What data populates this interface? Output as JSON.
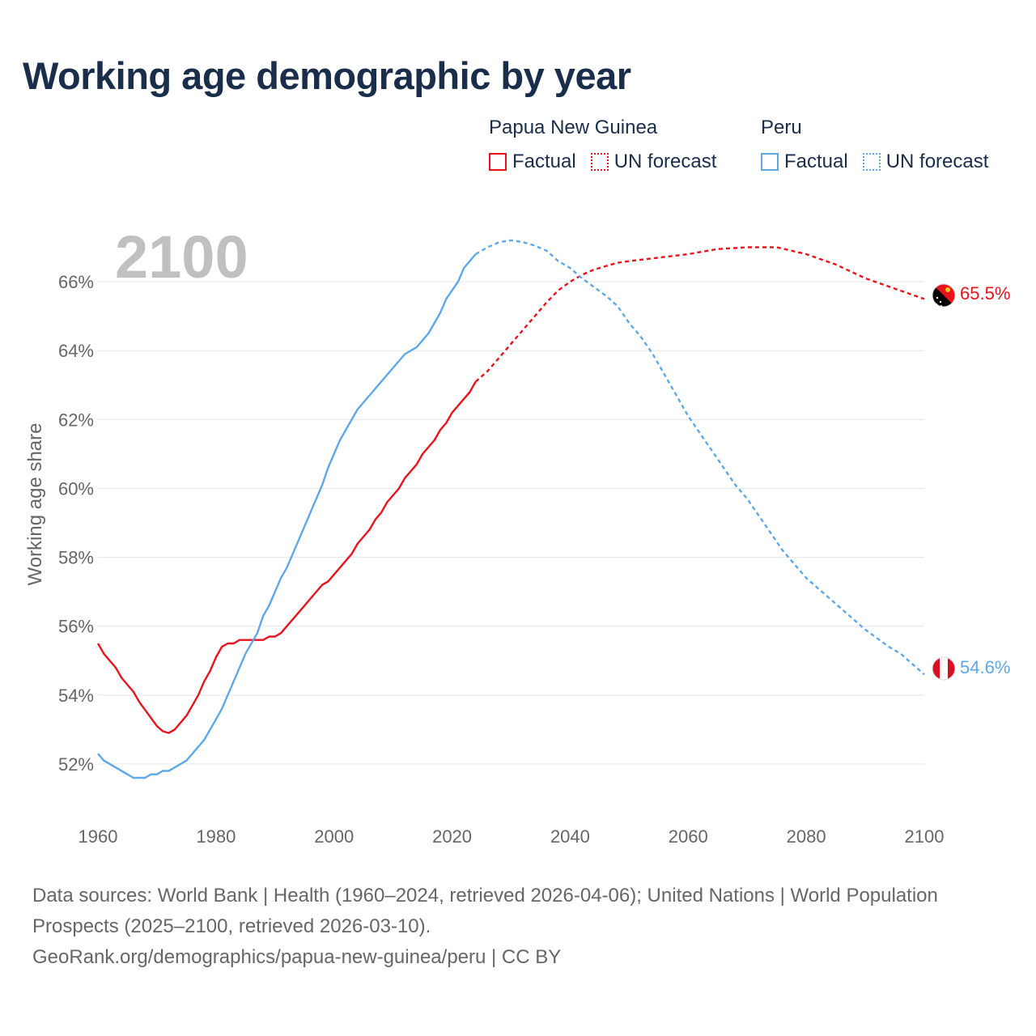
{
  "title": "Working age demographic by year",
  "legend": {
    "groups": [
      {
        "country": "Papua New Guinea",
        "factual_label": "Factual",
        "forecast_label": "UN forecast",
        "color": "#e8141c"
      },
      {
        "country": "Peru",
        "factual_label": "Factual",
        "forecast_label": "UN forecast",
        "color": "#5ea8e8"
      }
    ]
  },
  "colors": {
    "pg": "#e8141c",
    "pe": "#5ea8e8",
    "grid": "#e6e6e6",
    "axis_text": "#666666",
    "year_watermark": "#c0c0c0"
  },
  "footer": {
    "sources": "Data sources: World Bank | Health (1960–2024, retrieved 2026-04-06); United Nations | World Population Prospects (2025–2100, retrieved 2026-03-10).",
    "attribution": "GeoRank.org/demographics/papua-new-guinea/peru | CC BY"
  },
  "chart_data": {
    "type": "line",
    "title": "Working age demographic by year",
    "current_year_label": "2100",
    "xlabel": "",
    "ylabel": "Working age share",
    "xlim": [
      1960,
      2100
    ],
    "ylim": [
      50.8,
      67.6
    ],
    "x_ticks": [
      1960,
      1980,
      2000,
      2020,
      2040,
      2060,
      2080,
      2100
    ],
    "y_ticks": [
      52,
      54,
      56,
      58,
      60,
      62,
      64,
      66
    ],
    "y_tick_labels": [
      "52%",
      "54%",
      "56%",
      "58%",
      "60%",
      "62%",
      "64%",
      "66%"
    ],
    "grid": true,
    "factual_until": 2024,
    "series": [
      {
        "name": "Papua New Guinea",
        "key": "pg",
        "end_label": "65.5%",
        "flag": "papua-new-guinea-flag",
        "points": [
          [
            1960,
            55.5
          ],
          [
            1961,
            55.2
          ],
          [
            1963,
            54.8
          ],
          [
            1964,
            54.5
          ],
          [
            1966,
            54.1
          ],
          [
            1967,
            53.8
          ],
          [
            1970,
            53.1
          ],
          [
            1971,
            52.95
          ],
          [
            1972,
            52.9
          ],
          [
            1973,
            53.0
          ],
          [
            1975,
            53.4
          ],
          [
            1977,
            54.0
          ],
          [
            1978,
            54.4
          ],
          [
            1979,
            54.7
          ],
          [
            1980,
            55.1
          ],
          [
            1981,
            55.4
          ],
          [
            1982,
            55.5
          ],
          [
            1983,
            55.5
          ],
          [
            1984,
            55.6
          ],
          [
            1985,
            55.6
          ],
          [
            1986,
            55.6
          ],
          [
            1987,
            55.6
          ],
          [
            1988,
            55.6
          ],
          [
            1989,
            55.7
          ],
          [
            1990,
            55.7
          ],
          [
            1991,
            55.8
          ],
          [
            1993,
            56.2
          ],
          [
            1995,
            56.6
          ],
          [
            1997,
            57.0
          ],
          [
            1998,
            57.2
          ],
          [
            1999,
            57.3
          ],
          [
            2001,
            57.7
          ],
          [
            2003,
            58.1
          ],
          [
            2004,
            58.4
          ],
          [
            2006,
            58.8
          ],
          [
            2007,
            59.1
          ],
          [
            2008,
            59.3
          ],
          [
            2009,
            59.6
          ],
          [
            2010,
            59.8
          ],
          [
            2011,
            60.0
          ],
          [
            2012,
            60.3
          ],
          [
            2014,
            60.7
          ],
          [
            2015,
            61.0
          ],
          [
            2017,
            61.4
          ],
          [
            2018,
            61.7
          ],
          [
            2019,
            61.9
          ],
          [
            2020,
            62.2
          ],
          [
            2022,
            62.6
          ],
          [
            2023,
            62.8
          ],
          [
            2024,
            63.1
          ],
          [
            2026,
            63.4
          ],
          [
            2028,
            63.8
          ],
          [
            2030,
            64.2
          ],
          [
            2032,
            64.6
          ],
          [
            2034,
            65.0
          ],
          [
            2036,
            65.4
          ],
          [
            2038,
            65.75
          ],
          [
            2040,
            66.0
          ],
          [
            2042,
            66.2
          ],
          [
            2044,
            66.35
          ],
          [
            2046,
            66.45
          ],
          [
            2048,
            66.55
          ],
          [
            2050,
            66.6
          ],
          [
            2055,
            66.7
          ],
          [
            2060,
            66.8
          ],
          [
            2065,
            66.95
          ],
          [
            2070,
            67.0
          ],
          [
            2075,
            67.0
          ],
          [
            2080,
            66.8
          ],
          [
            2085,
            66.5
          ],
          [
            2090,
            66.1
          ],
          [
            2095,
            65.8
          ],
          [
            2100,
            65.5
          ]
        ]
      },
      {
        "name": "Peru",
        "key": "pe",
        "end_label": "54.6%",
        "flag": "peru-flag",
        "points": [
          [
            1960,
            52.3
          ],
          [
            1961,
            52.1
          ],
          [
            1963,
            51.9
          ],
          [
            1965,
            51.7
          ],
          [
            1966,
            51.6
          ],
          [
            1968,
            51.6
          ],
          [
            1969,
            51.7
          ],
          [
            1970,
            51.7
          ],
          [
            1971,
            51.8
          ],
          [
            1972,
            51.8
          ],
          [
            1975,
            52.1
          ],
          [
            1978,
            52.7
          ],
          [
            1980,
            53.3
          ],
          [
            1981,
            53.6
          ],
          [
            1983,
            54.4
          ],
          [
            1985,
            55.2
          ],
          [
            1987,
            55.8
          ],
          [
            1988,
            56.3
          ],
          [
            1989,
            56.6
          ],
          [
            1991,
            57.4
          ],
          [
            1992,
            57.7
          ],
          [
            1994,
            58.5
          ],
          [
            1996,
            59.3
          ],
          [
            1998,
            60.1
          ],
          [
            1999,
            60.6
          ],
          [
            2001,
            61.4
          ],
          [
            2003,
            62.0
          ],
          [
            2004,
            62.3
          ],
          [
            2006,
            62.7
          ],
          [
            2008,
            63.1
          ],
          [
            2010,
            63.5
          ],
          [
            2012,
            63.9
          ],
          [
            2014,
            64.1
          ],
          [
            2016,
            64.5
          ],
          [
            2018,
            65.1
          ],
          [
            2019,
            65.5
          ],
          [
            2021,
            66.0
          ],
          [
            2022,
            66.4
          ],
          [
            2024,
            66.8
          ],
          [
            2026,
            67.0
          ],
          [
            2028,
            67.15
          ],
          [
            2030,
            67.2
          ],
          [
            2032,
            67.15
          ],
          [
            2034,
            67.05
          ],
          [
            2036,
            66.9
          ],
          [
            2038,
            66.6
          ],
          [
            2040,
            66.4
          ],
          [
            2042,
            66.1
          ],
          [
            2044,
            65.85
          ],
          [
            2046,
            65.6
          ],
          [
            2048,
            65.3
          ],
          [
            2050,
            64.8
          ],
          [
            2052,
            64.4
          ],
          [
            2054,
            63.9
          ],
          [
            2056,
            63.3
          ],
          [
            2058,
            62.7
          ],
          [
            2060,
            62.1
          ],
          [
            2062,
            61.6
          ],
          [
            2064,
            61.1
          ],
          [
            2066,
            60.6
          ],
          [
            2068,
            60.1
          ],
          [
            2070,
            59.7
          ],
          [
            2072,
            59.2
          ],
          [
            2074,
            58.7
          ],
          [
            2076,
            58.2
          ],
          [
            2078,
            57.8
          ],
          [
            2080,
            57.4
          ],
          [
            2082,
            57.1
          ],
          [
            2084,
            56.8
          ],
          [
            2086,
            56.5
          ],
          [
            2088,
            56.2
          ],
          [
            2090,
            55.9
          ],
          [
            2092,
            55.65
          ],
          [
            2094,
            55.4
          ],
          [
            2096,
            55.2
          ],
          [
            2098,
            54.9
          ],
          [
            2100,
            54.6
          ]
        ]
      }
    ]
  }
}
